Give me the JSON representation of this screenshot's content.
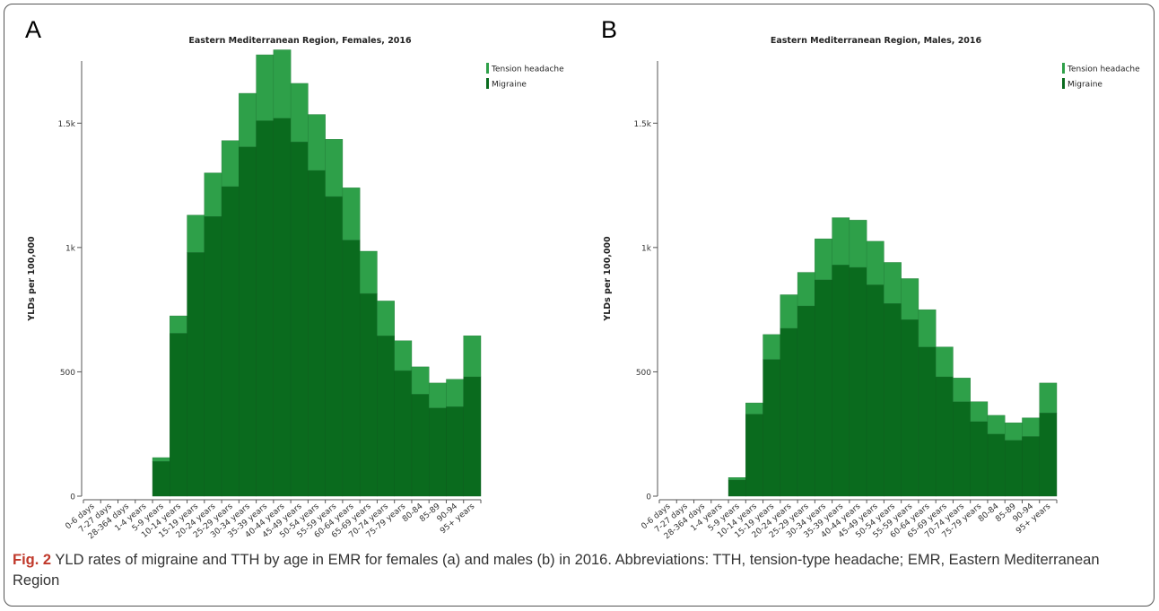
{
  "figure": {
    "caption_label": "Fig. 2",
    "caption_text": "YLD rates of migraine and TTH by age in EMR for females (a) and males (b) in 2016. Abbreviations: TTH, tension-type headache; EMR, Eastern Mediterranean Region"
  },
  "colors": {
    "tension_headache": "#2ea049",
    "migraine": "#0a6b1e",
    "axis": "#555555"
  },
  "chart_data": [
    {
      "panel": "A",
      "type": "bar",
      "stacked": true,
      "title": "Eastern Mediterranean Region, Females, 2016",
      "ylabel": "YLDs per 100,000",
      "ylim": [
        0,
        1750
      ],
      "yticks": [
        0,
        500,
        1000,
        1500
      ],
      "ytick_labels": [
        "0",
        "500",
        "1k",
        "1.5k"
      ],
      "legend": {
        "position": "top-right",
        "entries": [
          "Tension headache",
          "Migraine"
        ]
      },
      "categories": [
        "0-6 days",
        "7-27 days",
        "28-364 days",
        "1-4 years",
        "5-9 years",
        "10-14 years",
        "15-19 years",
        "20-24 years",
        "25-29 years",
        "30-34 years",
        "35-39 years",
        "40-44 years",
        "45-49 years",
        "50-54 years",
        "55-59 years",
        "60-64 years",
        "65-69 years",
        "70-74 years",
        "75-79 years",
        "80-84",
        "85-89",
        "90-94",
        "95+ years"
      ],
      "series": [
        {
          "name": "Migraine",
          "values": [
            0,
            0,
            0,
            0,
            140,
            655,
            980,
            1125,
            1245,
            1405,
            1510,
            1520,
            1425,
            1310,
            1205,
            1030,
            815,
            645,
            505,
            410,
            355,
            360,
            480
          ]
        },
        {
          "name": "Tension headache",
          "values": [
            0,
            0,
            0,
            0,
            15,
            70,
            150,
            175,
            185,
            215,
            265,
            275,
            235,
            225,
            230,
            210,
            170,
            140,
            120,
            110,
            100,
            110,
            165
          ]
        }
      ]
    },
    {
      "panel": "B",
      "type": "bar",
      "stacked": true,
      "title": "Eastern Mediterranean Region, Males, 2016",
      "ylabel": "YLDs per 100,000",
      "ylim": [
        0,
        1750
      ],
      "yticks": [
        0,
        500,
        1000,
        1500
      ],
      "ytick_labels": [
        "0",
        "500",
        "1k",
        "1.5k"
      ],
      "legend": {
        "position": "top-right",
        "entries": [
          "Tension headache",
          "Migraine"
        ]
      },
      "categories": [
        "0-6 days",
        "7-27 days",
        "28-364 days",
        "1-4 years",
        "5-9 years",
        "10-14 years",
        "15-19 years",
        "20-24 years",
        "25-29 years",
        "30-34 years",
        "35-39 years",
        "40-44 years",
        "45-49 years",
        "50-54 years",
        "55-59 years",
        "60-64 years",
        "65-69 years",
        "70-74 years",
        "75-79 years",
        "80-84",
        "85-89",
        "90-94",
        "95+ years"
      ],
      "series": [
        {
          "name": "Migraine",
          "values": [
            0,
            0,
            0,
            0,
            65,
            330,
            550,
            675,
            765,
            870,
            930,
            920,
            850,
            775,
            710,
            600,
            480,
            380,
            300,
            250,
            225,
            240,
            335
          ]
        },
        {
          "name": "Tension headache",
          "values": [
            0,
            0,
            0,
            0,
            10,
            45,
            100,
            135,
            135,
            165,
            190,
            190,
            175,
            165,
            165,
            150,
            120,
            95,
            80,
            75,
            70,
            75,
            120
          ]
        }
      ]
    }
  ]
}
